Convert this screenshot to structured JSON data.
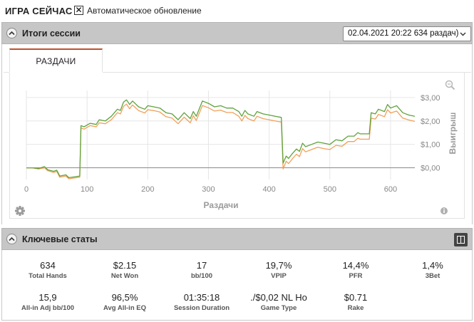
{
  "topbar": {
    "title": "ИГРА СЕЙЧАС",
    "auto_refresh": {
      "checked": true,
      "mark": "✕",
      "label": "Автоматическое обновление"
    }
  },
  "session_section": {
    "title": "Итоги сессии",
    "collapse_icon": "chevron-up-icon",
    "session_select": {
      "value": "02.04.2021 20:22 634 раздач)",
      "icon": "chevron-down-icon"
    },
    "tabs": [
      {
        "label": "РАЗДАЧИ",
        "active": true
      }
    ],
    "zoom_icon": "magnifier-icon",
    "settings_icon": "gear-icon",
    "info_icon": "info-icon"
  },
  "colors": {
    "header_bg": "#c6c6c6",
    "tab_accent": "#c0502a",
    "series_green": "#5fa33c",
    "series_orange": "#f2a05a",
    "zero_line": "#8a8a8a",
    "grid": "#e6e6e6"
  },
  "chart_data": {
    "type": "line",
    "xlabel": "Раздачи",
    "ylabel": "Выигрыш",
    "xlim": [
      0,
      640
    ],
    "ylim": [
      -0.5,
      3.3
    ],
    "xticks": [
      "0",
      "100",
      "200",
      "300",
      "400",
      "500",
      "600"
    ],
    "xtick_values": [
      0,
      100,
      200,
      300,
      400,
      500,
      600
    ],
    "yticks": [
      "$0,00",
      "$1,00",
      "$2,00",
      "$3,00"
    ],
    "ytick_values": [
      0,
      1,
      2,
      3
    ],
    "grid": true,
    "zero_line": true,
    "series": [
      {
        "color": "#5fa33c",
        "points": [
          [
            0,
            0
          ],
          [
            10,
            0
          ],
          [
            20,
            -0.03
          ],
          [
            30,
            0.05
          ],
          [
            35,
            -0.08
          ],
          [
            45,
            -0.15
          ],
          [
            50,
            -0.1
          ],
          [
            55,
            -0.35
          ],
          [
            65,
            -0.3
          ],
          [
            70,
            -0.42
          ],
          [
            80,
            -0.38
          ],
          [
            88,
            -0.35
          ],
          [
            90,
            1.8
          ],
          [
            95,
            1.75
          ],
          [
            105,
            1.9
          ],
          [
            115,
            1.85
          ],
          [
            120,
            2.05
          ],
          [
            130,
            2.0
          ],
          [
            140,
            2.2
          ],
          [
            150,
            2.5
          ],
          [
            155,
            2.45
          ],
          [
            160,
            2.8
          ],
          [
            165,
            2.9
          ],
          [
            170,
            2.7
          ],
          [
            175,
            2.85
          ],
          [
            185,
            2.6
          ],
          [
            195,
            2.5
          ],
          [
            200,
            2.65
          ],
          [
            210,
            2.6
          ],
          [
            220,
            2.55
          ],
          [
            230,
            2.35
          ],
          [
            240,
            2.3
          ],
          [
            250,
            2.05
          ],
          [
            255,
            2.2
          ],
          [
            260,
            2.35
          ],
          [
            270,
            2.1
          ],
          [
            275,
            2.4
          ],
          [
            280,
            2.2
          ],
          [
            290,
            2.85
          ],
          [
            300,
            2.75
          ],
          [
            310,
            2.6
          ],
          [
            320,
            2.65
          ],
          [
            330,
            2.55
          ],
          [
            340,
            2.55
          ],
          [
            350,
            2.4
          ],
          [
            355,
            2.2
          ],
          [
            360,
            2.45
          ],
          [
            365,
            2.3
          ],
          [
            375,
            2.2
          ],
          [
            380,
            2.4
          ],
          [
            390,
            2.3
          ],
          [
            400,
            2.25
          ],
          [
            410,
            2.2
          ],
          [
            420,
            2.15
          ],
          [
            423,
            0.2
          ],
          [
            428,
            0.5
          ],
          [
            432,
            0.4
          ],
          [
            438,
            0.6
          ],
          [
            445,
            0.8
          ],
          [
            450,
            0.7
          ],
          [
            455,
            1.05
          ],
          [
            460,
            0.9
          ],
          [
            470,
            1.0
          ],
          [
            480,
            1.1
          ],
          [
            490,
            1.05
          ],
          [
            500,
            1.0
          ],
          [
            510,
            1.2
          ],
          [
            520,
            1.15
          ],
          [
            530,
            1.35
          ],
          [
            540,
            1.35
          ],
          [
            546,
            1.5
          ],
          [
            550,
            1.45
          ],
          [
            560,
            1.45
          ],
          [
            565,
            1.45
          ],
          [
            568,
            2.35
          ],
          [
            575,
            2.3
          ],
          [
            580,
            2.5
          ],
          [
            590,
            2.4
          ],
          [
            595,
            2.7
          ],
          [
            600,
            2.55
          ],
          [
            610,
            2.65
          ],
          [
            620,
            2.35
          ],
          [
            630,
            2.25
          ],
          [
            640,
            2.2
          ]
        ]
      },
      {
        "color": "#f2a05a",
        "points": [
          [
            0,
            0
          ],
          [
            10,
            0
          ],
          [
            20,
            -0.05
          ],
          [
            30,
            0.0
          ],
          [
            35,
            -0.12
          ],
          [
            45,
            -0.2
          ],
          [
            50,
            -0.15
          ],
          [
            55,
            -0.4
          ],
          [
            65,
            -0.35
          ],
          [
            70,
            -0.47
          ],
          [
            80,
            -0.43
          ],
          [
            88,
            -0.4
          ],
          [
            90,
            1.7
          ],
          [
            95,
            1.65
          ],
          [
            105,
            1.8
          ],
          [
            115,
            1.75
          ],
          [
            120,
            1.92
          ],
          [
            130,
            1.88
          ],
          [
            140,
            2.05
          ],
          [
            150,
            2.35
          ],
          [
            155,
            2.3
          ],
          [
            160,
            2.62
          ],
          [
            165,
            2.72
          ],
          [
            170,
            2.52
          ],
          [
            175,
            2.68
          ],
          [
            185,
            2.44
          ],
          [
            195,
            2.34
          ],
          [
            200,
            2.48
          ],
          [
            210,
            2.44
          ],
          [
            220,
            2.38
          ],
          [
            230,
            2.18
          ],
          [
            240,
            2.12
          ],
          [
            250,
            1.88
          ],
          [
            255,
            2.02
          ],
          [
            260,
            2.16
          ],
          [
            270,
            1.92
          ],
          [
            275,
            2.22
          ],
          [
            280,
            2.02
          ],
          [
            290,
            2.66
          ],
          [
            300,
            2.56
          ],
          [
            310,
            2.42
          ],
          [
            320,
            2.46
          ],
          [
            330,
            2.36
          ],
          [
            340,
            2.36
          ],
          [
            350,
            2.2
          ],
          [
            355,
            2.0
          ],
          [
            360,
            2.24
          ],
          [
            365,
            2.1
          ],
          [
            375,
            2.0
          ],
          [
            380,
            2.2
          ],
          [
            390,
            2.1
          ],
          [
            400,
            2.05
          ],
          [
            410,
            2.0
          ],
          [
            420,
            1.95
          ],
          [
            423,
            -0.05
          ],
          [
            428,
            0.28
          ],
          [
            432,
            0.18
          ],
          [
            438,
            0.38
          ],
          [
            445,
            0.58
          ],
          [
            450,
            0.48
          ],
          [
            455,
            0.82
          ],
          [
            460,
            0.68
          ],
          [
            470,
            0.78
          ],
          [
            480,
            0.88
          ],
          [
            490,
            0.82
          ],
          [
            500,
            0.78
          ],
          [
            510,
            0.96
          ],
          [
            520,
            0.92
          ],
          [
            530,
            1.12
          ],
          [
            540,
            1.12
          ],
          [
            546,
            1.26
          ],
          [
            550,
            1.22
          ],
          [
            560,
            1.22
          ],
          [
            565,
            1.22
          ],
          [
            568,
            2.12
          ],
          [
            575,
            2.08
          ],
          [
            580,
            2.28
          ],
          [
            590,
            2.18
          ],
          [
            595,
            2.48
          ],
          [
            600,
            2.34
          ],
          [
            610,
            2.42
          ],
          [
            620,
            2.12
          ],
          [
            630,
            2.04
          ],
          [
            640,
            1.98
          ]
        ]
      }
    ]
  },
  "stats_section": {
    "title": "Ключевые статы",
    "collapse_icon": "chevron-up-icon",
    "layout_icon": "columns-icon",
    "rows": [
      [
        {
          "value": "634",
          "label": "Total Hands"
        },
        {
          "value": "$2.15",
          "label": "Net Won"
        },
        {
          "value": "17",
          "label": "bb/100"
        },
        {
          "value": "19,7%",
          "label": "VPIP"
        },
        {
          "value": "14,4%",
          "label": "PFR"
        },
        {
          "value": "1,4%",
          "label": "3Bet"
        }
      ],
      [
        {
          "value": "15,9",
          "label": "All-in Adj bb/100"
        },
        {
          "value": "96,5%",
          "label": "Avg All-in EQ"
        },
        {
          "value": "01:35:18",
          "label": "Session Duration"
        },
        {
          "value": "./$0,02 NL Ho",
          "label": "Game Type"
        },
        {
          "value": "$0.71",
          "label": "Rake"
        }
      ]
    ]
  }
}
